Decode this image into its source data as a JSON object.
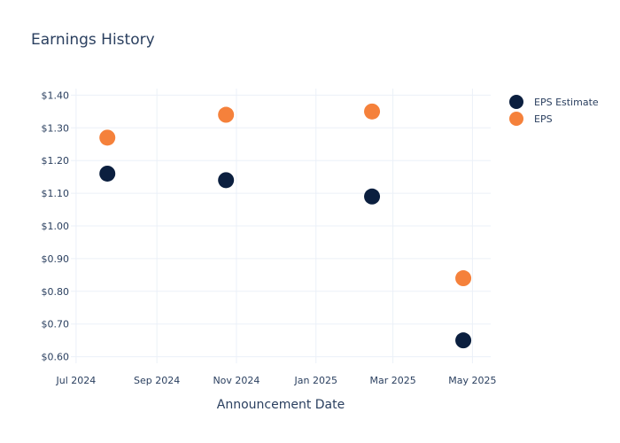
{
  "chart_data": {
    "type": "scatter",
    "title": "Earnings History",
    "xlabel": "Announcement Date",
    "ylabel": "",
    "x_ticks": [
      "Jul 2024",
      "Sep 2024",
      "Nov 2024",
      "Jan 2025",
      "Mar 2025",
      "May 2025"
    ],
    "x_tick_dates": [
      "2024-07-01",
      "2024-09-01",
      "2024-11-01",
      "2025-01-01",
      "2025-03-01",
      "2025-05-01"
    ],
    "xlim": [
      "2024-06-27",
      "2025-05-15"
    ],
    "y_ticks": [
      "$0.60",
      "$0.70",
      "$0.80",
      "$0.90",
      "$1.00",
      "$1.10",
      "$1.20",
      "$1.30",
      "$1.40"
    ],
    "y_tick_values": [
      0.6,
      0.7,
      0.8,
      0.9,
      1.0,
      1.1,
      1.2,
      1.3,
      1.4
    ],
    "ylim": [
      0.58,
      1.42
    ],
    "grid": true,
    "legend_position": "top-right",
    "series": [
      {
        "name": "EPS Estimate",
        "color": "#0b1f3f",
        "x": [
          "2024-07-25",
          "2024-10-24",
          "2025-02-13",
          "2025-04-24"
        ],
        "y": [
          1.16,
          1.14,
          1.09,
          0.65
        ]
      },
      {
        "name": "EPS",
        "color": "#f5813b",
        "x": [
          "2024-07-25",
          "2024-10-24",
          "2025-02-13",
          "2025-04-24"
        ],
        "y": [
          1.27,
          1.34,
          1.35,
          0.84
        ]
      }
    ]
  }
}
